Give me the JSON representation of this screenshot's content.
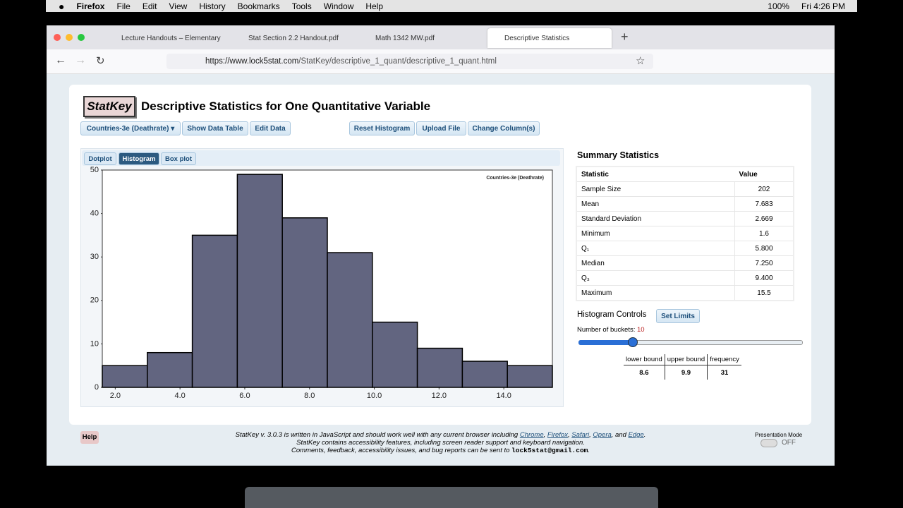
{
  "menubar": {
    "app": "Firefox",
    "items": [
      "File",
      "Edit",
      "View",
      "History",
      "Bookmarks",
      "Tools",
      "Window",
      "Help"
    ],
    "battery": "100%",
    "clock": "Fri 4:26 PM"
  },
  "browser": {
    "tabs": [
      "Lecture Handouts – Elementary",
      "Stat Section 2.2 Handout.pdf",
      "Math 1342 MW.pdf",
      "Descriptive Statistics"
    ],
    "url_host": "https://www.lock5stat.com",
    "url_path": "/StatKey/descriptive_1_quant/descriptive_1_quant.html"
  },
  "header": {
    "logo": "StatKey",
    "title": "Descriptive Statistics for One Quantitative Variable"
  },
  "toolbar": {
    "dataset": "Countries-3e (Deathrate)",
    "buttons": [
      "Show Data Table",
      "Edit Data",
      "Reset Histogram",
      "Upload File",
      "Change Column(s)"
    ]
  },
  "plot_tabs": [
    "Dotplot",
    "Histogram",
    "Box plot"
  ],
  "chart_data": {
    "type": "histogram",
    "legend": "Countries-3e (Deathrate)",
    "bins": [
      1.6,
      2.99,
      4.38,
      5.77,
      7.16,
      8.55,
      9.94,
      11.33,
      12.72,
      14.11,
      15.5
    ],
    "values": [
      5,
      8,
      35,
      49,
      39,
      31,
      15,
      9,
      6,
      5
    ],
    "color": "#626580",
    "xlim": [
      1.6,
      15.5
    ],
    "xticks": [
      {
        "value": 2,
        "label": "2.0"
      },
      {
        "value": 4,
        "label": "4.0"
      },
      {
        "value": 6,
        "label": "6.0"
      },
      {
        "value": 8,
        "label": "8.0"
      },
      {
        "value": 10,
        "label": "10.0"
      },
      {
        "value": 12,
        "label": "12.0"
      },
      {
        "value": 14,
        "label": "14.0"
      }
    ],
    "ylim": [
      0,
      50
    ],
    "yticks": [
      0,
      10,
      20,
      30,
      40,
      50
    ]
  },
  "summary": {
    "title": "Summary Statistics",
    "header": [
      "Statistic",
      "Value"
    ],
    "rows": [
      [
        "Sample Size",
        "202"
      ],
      [
        "Mean",
        "7.683"
      ],
      [
        "Standard Deviation",
        "2.669"
      ],
      [
        "Minimum",
        "1.6"
      ],
      [
        "Q₁",
        "5.800"
      ],
      [
        "Median",
        "7.250"
      ],
      [
        "Q₃",
        "9.400"
      ],
      [
        "Maximum",
        "15.5"
      ]
    ]
  },
  "controls": {
    "title": "Histogram Controls",
    "button": "Set Limits",
    "buckets_label": "Number of buckets:",
    "buckets": 10,
    "table": {
      "header": [
        "lower bound",
        "upper bound",
        "frequency"
      ],
      "row": [
        "8.6",
        "9.9",
        "31"
      ]
    }
  },
  "footer": {
    "help": "Help",
    "line1": [
      "StatKey v. 3.0.3 is written in JavaScript and should work well with any current browser including ",
      "Chrome",
      ", ",
      "Firefox",
      ", ",
      "Safari",
      ", ",
      "Opera",
      ", and ",
      "Edge",
      "."
    ],
    "line2": "StatKey contains accessibility features, including screen reader support and keyboard navigation.",
    "line3": [
      "Comments, feedback, accessibility issues, and bug reports can be sent to ",
      "lock5stat@gmail.com",
      "."
    ],
    "presentation": "Presentation Mode",
    "toggle": "OFF"
  }
}
